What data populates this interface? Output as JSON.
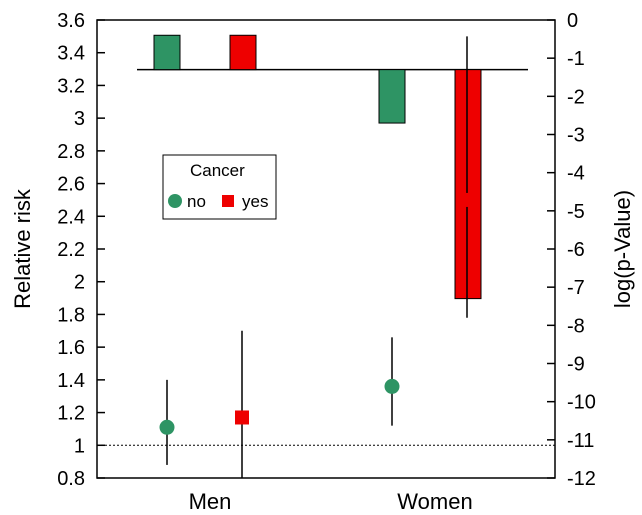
{
  "chart_data": {
    "type": "bar",
    "categories": [
      "Men",
      "Women"
    ],
    "left_axis": {
      "label": "Relative risk",
      "ylim": [
        0.8,
        3.6
      ],
      "ticks": [
        0.8,
        1,
        1.2,
        1.4,
        1.6,
        1.8,
        2,
        2.2,
        2.4,
        2.6,
        2.8,
        3,
        3.2,
        3.4,
        3.6
      ],
      "tick_labels": [
        "0.8",
        "1",
        "1.2",
        "1.4",
        "1.6",
        "1.8",
        "2",
        "2.2",
        "2.4",
        "2.6",
        "2.8",
        "3",
        "3.2",
        "3.4",
        "3.6"
      ],
      "reference_line": 1.0
    },
    "right_axis": {
      "label": "log(p-Value)",
      "ylim": [
        -12,
        0
      ],
      "ticks": [
        0,
        -1,
        -2,
        -3,
        -4,
        -5,
        -6,
        -7,
        -8,
        -9,
        -10,
        -11,
        -12
      ],
      "tick_labels": [
        "0",
        "-1",
        "-2",
        "-3",
        "-4",
        "-5",
        "-6",
        "-7",
        "-8",
        "-9",
        "-10",
        "-11",
        "-12"
      ],
      "bar_baseline": -1.3
    },
    "legend": {
      "title": "Cancer",
      "placement": "upper-left",
      "entries": [
        {
          "label": "no",
          "marker": "circle",
          "color": "#2e9464"
        },
        {
          "label": "yes",
          "marker": "square",
          "color": "#ee0000"
        }
      ]
    },
    "bars_log_p": [
      {
        "category": "Men",
        "series": "no",
        "value": -0.4
      },
      {
        "category": "Men",
        "series": "yes",
        "value": -0.4
      },
      {
        "category": "Women",
        "series": "no",
        "value": -2.7
      },
      {
        "category": "Women",
        "series": "yes",
        "value": -7.3
      }
    ],
    "points_relative_risk": [
      {
        "category": "Men",
        "series": "no",
        "value": 1.11,
        "ci": [
          0.88,
          1.4
        ]
      },
      {
        "category": "Men",
        "series": "yes",
        "value": 1.17,
        "ci": [
          0.8,
          1.7
        ]
      },
      {
        "category": "Women",
        "series": "no",
        "value": 1.36,
        "ci": [
          1.12,
          1.66
        ]
      },
      {
        "category": "Women",
        "series": "yes",
        "value": 2.5,
        "ci": [
          1.78,
          3.5
        ]
      }
    ],
    "colors": {
      "no": "#2e9464",
      "yes": "#ee0000"
    }
  }
}
